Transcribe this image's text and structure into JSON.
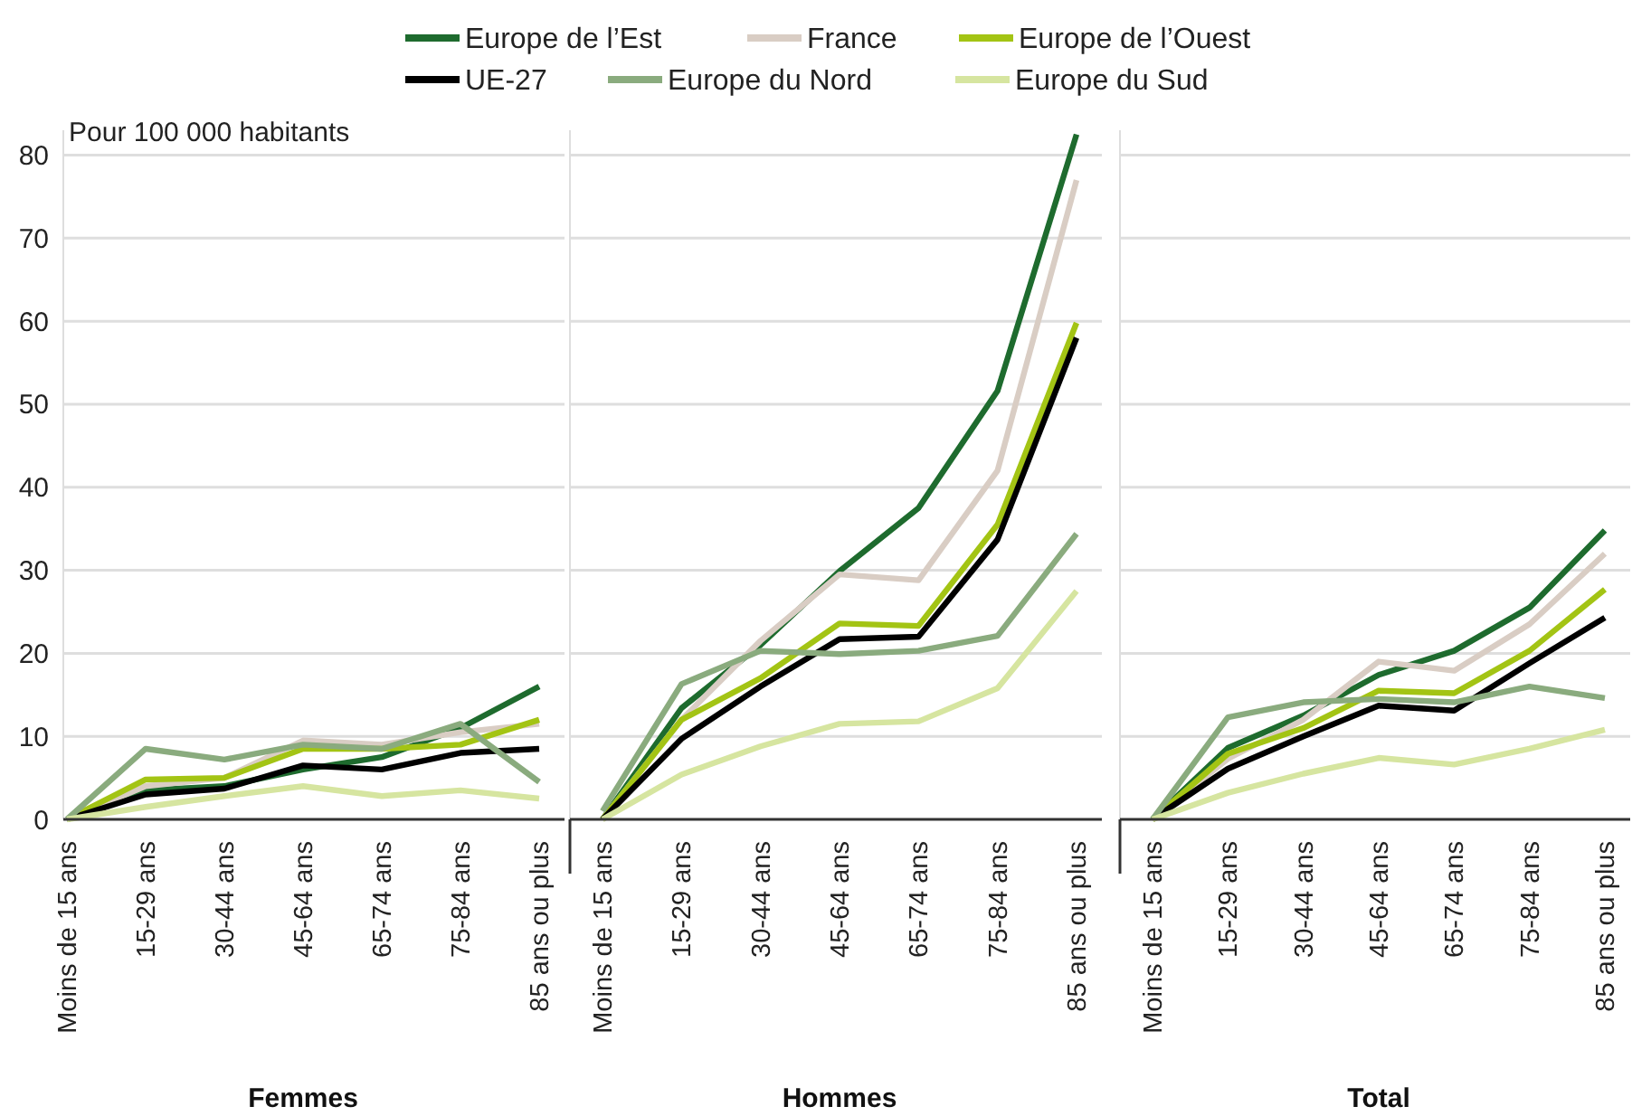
{
  "chart_data": [
    {
      "type": "line",
      "ylabel": "Pour 100 000 habitants",
      "xlabel": "Femmes",
      "legend": "top",
      "grid": "y",
      "ylim": [
        0,
        83
      ],
      "yticks": [
        0,
        10,
        20,
        30,
        40,
        50,
        60,
        70,
        80
      ],
      "categories": [
        "Moins de 15 ans",
        "15-29 ans",
        "30-44 ans",
        "45-64 ans",
        "65-74 ans",
        "75-84 ans",
        "85 ans ou plus"
      ],
      "series": [
        {
          "name": "Europe de l’Est",
          "color": "#1e6b2e",
          "values": [
            0,
            3.5,
            4,
            6,
            7.5,
            11,
            16
          ]
        },
        {
          "name": "France",
          "color": "#d9cdc4",
          "values": [
            0,
            4,
            5,
            9.5,
            9,
            10.5,
            11.5
          ]
        },
        {
          "name": "Europe de l’Ouest",
          "color": "#a3c414",
          "values": [
            0,
            4.8,
            5,
            8.5,
            8.5,
            9,
            12
          ]
        },
        {
          "name": "UE-27",
          "color": "#000000",
          "values": [
            0,
            3,
            3.7,
            6.5,
            6,
            8,
            8.5
          ]
        },
        {
          "name": "Europe du Nord",
          "color": "#8aab7e",
          "values": [
            0,
            8.5,
            7.2,
            9,
            8.5,
            11.5,
            4.5
          ]
        },
        {
          "name": "Europe du Sud",
          "color": "#d6e5a0",
          "values": [
            0,
            1.5,
            2.8,
            4,
            2.8,
            3.5,
            2.5
          ]
        }
      ]
    },
    {
      "type": "line",
      "xlabel": "Hommes",
      "grid": "y",
      "tick_labels": "x",
      "ylim": [
        0,
        83
      ],
      "yticks": [
        0,
        10,
        20,
        30,
        40,
        50,
        60,
        70,
        80
      ],
      "categories": [
        "Moins de 15 ans",
        "15-29 ans",
        "30-44 ans",
        "45-64 ans",
        "65-74 ans",
        "75-84 ans",
        "85 ans ou plus"
      ],
      "series": [
        {
          "color": "#1e6b2e",
          "values": [
            0,
            13.4,
            21,
            29.9,
            37.5,
            51.6,
            82.5
          ]
        },
        {
          "color": "#d9cdc4",
          "values": [
            0,
            12,
            21.5,
            29.5,
            28.8,
            42,
            77
          ]
        },
        {
          "color": "#a3c414",
          "values": [
            0,
            12,
            17,
            23.6,
            23.3,
            35.5,
            59.8
          ]
        },
        {
          "color": "#000000",
          "values": [
            0,
            9.7,
            16,
            21.7,
            22,
            33.7,
            58
          ]
        },
        {
          "color": "#8aab7e",
          "values": [
            1,
            16.3,
            20.3,
            19.9,
            20.3,
            22.1,
            34.4
          ]
        },
        {
          "color": "#d6e5a0",
          "values": [
            0,
            5.4,
            8.8,
            11.5,
            11.8,
            15.8,
            27.5
          ]
        }
      ]
    },
    {
      "type": "line",
      "xlabel": "Total",
      "grid": "y",
      "tick_labels": "x",
      "ylim": [
        0,
        83
      ],
      "yticks": [
        0,
        10,
        20,
        30,
        40,
        50,
        60,
        70,
        80
      ],
      "categories": [
        "Moins de 15 ans",
        "15-29 ans",
        "30-44 ans",
        "45-64 ans",
        "65-74 ans",
        "75-84 ans",
        "85 ans ou plus"
      ],
      "series": [
        {
          "color": "#1e6b2e",
          "values": [
            0,
            8.6,
            12.5,
            17.4,
            20.3,
            25.5,
            34.8
          ]
        },
        {
          "color": "#d9cdc4",
          "values": [
            0,
            7.3,
            12,
            19,
            17.9,
            23.5,
            32
          ]
        },
        {
          "color": "#a3c414",
          "values": [
            0,
            7.9,
            11,
            15.5,
            15.2,
            20.3,
            27.7
          ]
        },
        {
          "color": "#000000",
          "values": [
            0,
            6.1,
            10,
            13.7,
            13.1,
            18.8,
            24.3
          ]
        },
        {
          "color": "#8aab7e",
          "values": [
            0,
            12.3,
            14.1,
            14.5,
            14.1,
            16,
            14.6
          ]
        },
        {
          "color": "#d6e5a0",
          "values": [
            0,
            3.2,
            5.5,
            7.4,
            6.6,
            8.5,
            10.8
          ]
        }
      ]
    }
  ]
}
